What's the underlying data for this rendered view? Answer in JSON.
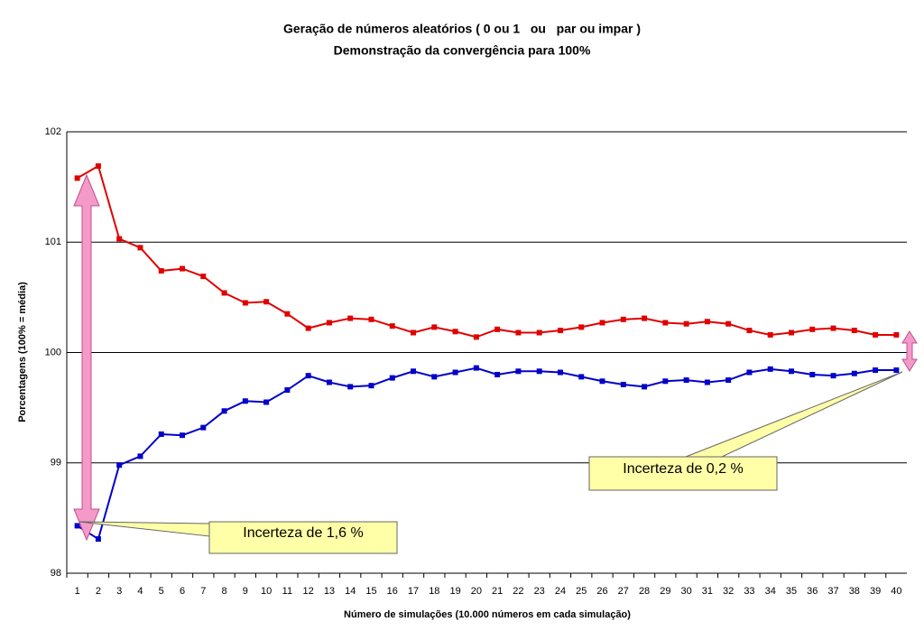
{
  "chart_data": {
    "type": "line",
    "title": "Geração de números aleatórios ( 0 ou 1   ou   par ou impar )",
    "subtitle": "Demonstração da convergência para 100%",
    "x_label": "Número de simulações  (10.000 números em cada simulação)",
    "y_label": "Porcentagens (100% = média)",
    "categories": [
      "1",
      "2",
      "3",
      "4",
      "5",
      "6",
      "7",
      "8",
      "9",
      "10",
      "11",
      "12",
      "13",
      "14",
      "15",
      "16",
      "17",
      "18",
      "19",
      "20",
      "21",
      "22",
      "23",
      "24",
      "25",
      "26",
      "27",
      "28",
      "29",
      "30",
      "31",
      "32",
      "33",
      "34",
      "35",
      "36",
      "37",
      "38",
      "39",
      "40"
    ],
    "series": [
      {
        "color": "#e00000",
        "values": [
          101.58,
          101.69,
          101.03,
          100.95,
          100.74,
          100.76,
          100.69,
          100.54,
          100.45,
          100.46,
          100.35,
          100.22,
          100.27,
          100.31,
          100.3,
          100.24,
          100.18,
          100.23,
          100.19,
          100.14,
          100.21,
          100.18,
          100.18,
          100.2,
          100.23,
          100.27,
          100.3,
          100.31,
          100.27,
          100.26,
          100.28,
          100.26,
          100.2,
          100.16,
          100.18,
          100.21,
          100.22,
          100.2,
          100.16,
          100.16
        ]
      },
      {
        "color": "#0000c8",
        "values": [
          98.43,
          98.31,
          98.98,
          99.06,
          99.26,
          99.25,
          99.32,
          99.47,
          99.56,
          99.55,
          99.66,
          99.79,
          99.73,
          99.69,
          99.7,
          99.77,
          99.83,
          99.78,
          99.82,
          99.86,
          99.8,
          99.83,
          99.83,
          99.82,
          99.78,
          99.74,
          99.71,
          99.69,
          99.74,
          99.75,
          99.73,
          99.75,
          99.82,
          99.85,
          99.83,
          99.8,
          99.79,
          99.81,
          99.84,
          99.84
        ]
      }
    ],
    "ylim": [
      98,
      102
    ],
    "yticks": [
      98,
      99,
      100,
      101,
      102
    ],
    "grid": true,
    "annotations": [
      {
        "text": "Incerteza de 1,6 %"
      },
      {
        "text": "Incerteza de 0,2 %"
      }
    ]
  }
}
